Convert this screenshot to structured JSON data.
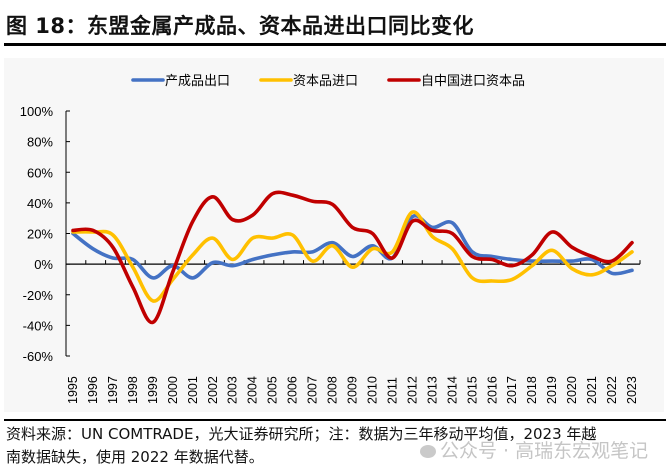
{
  "figure": {
    "title": "图 18：东盟金属产成品、资本品进出口同比变化",
    "note_line1": "资料来源：UN  COMTRADE，光大证券研究所；注：数据为三年移动平均值，2023 年越",
    "note_line2": "南数据缺失，使用 2022 年数据代替。",
    "watermark": "公众号 · 高瑞东宏观笔记"
  },
  "chart_data": {
    "type": "line",
    "title": "",
    "xlabel": "",
    "ylabel": "",
    "x": [
      "1995",
      "1996",
      "1997",
      "1998",
      "1999",
      "2000",
      "2001",
      "2002",
      "2003",
      "2004",
      "2005",
      "2006",
      "2007",
      "2008",
      "2009",
      "2010",
      "2011",
      "2012",
      "2013",
      "2014",
      "2015",
      "2016",
      "2017",
      "2018",
      "2019",
      "2020",
      "2021",
      "2022",
      "2023"
    ],
    "ylim": [
      -60,
      100
    ],
    "yticks": [
      100,
      80,
      60,
      40,
      20,
      0,
      -20,
      -40,
      -60
    ],
    "ytick_labels": [
      "100%",
      "80%",
      "60%",
      "40%",
      "20%",
      "0%",
      "-20%",
      "-40%",
      "-60%"
    ],
    "grid": false,
    "legend_position": "top-center",
    "series": [
      {
        "name": "产成品出口",
        "color": "#4472c4",
        "values": [
          20,
          10,
          4,
          3,
          -9,
          -1,
          -9,
          1,
          -1,
          3,
          6,
          8,
          8,
          14,
          5,
          12,
          4,
          31,
          24,
          27,
          8,
          5,
          3,
          2,
          2,
          2,
          3,
          -6,
          -4
        ]
      },
      {
        "name": "资本品进口",
        "color": "#ffc000",
        "values": [
          21,
          21,
          19,
          -2,
          -24,
          -10,
          6,
          17,
          3,
          17,
          17,
          19,
          2,
          12,
          -2,
          10,
          8,
          34,
          18,
          10,
          -9,
          -11,
          -10,
          -1,
          9,
          -3,
          -7,
          -1,
          8
        ]
      },
      {
        "name": "自中国进口资本品",
        "color": "#c00000",
        "values": [
          22,
          22,
          11,
          -15,
          -38,
          -5,
          28,
          44,
          29,
          32,
          46,
          45,
          41,
          39,
          24,
          20,
          4,
          28,
          22,
          20,
          5,
          3,
          -1,
          6,
          21,
          11,
          5,
          2,
          14
        ]
      }
    ]
  }
}
